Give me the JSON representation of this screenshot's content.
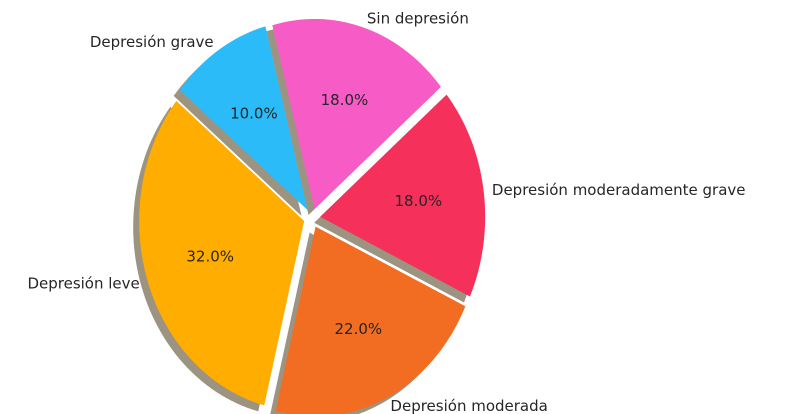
{
  "chart_data": {
    "type": "pie",
    "categories": [
      "Sin depresión",
      "Depresión grave",
      "Depresión leve",
      "Depresión moderada",
      "Depresión moderadamente grave"
    ],
    "values": [
      18,
      10,
      32,
      22,
      18
    ],
    "value_labels": [
      "18.0%",
      "10.0%",
      "32.0%",
      "22.0%",
      "18.0%"
    ],
    "colors": [
      "#f65bc6",
      "#2abbf8",
      "#ffad01",
      "#f26c22",
      "#f5305a"
    ],
    "shadow": true
  }
}
